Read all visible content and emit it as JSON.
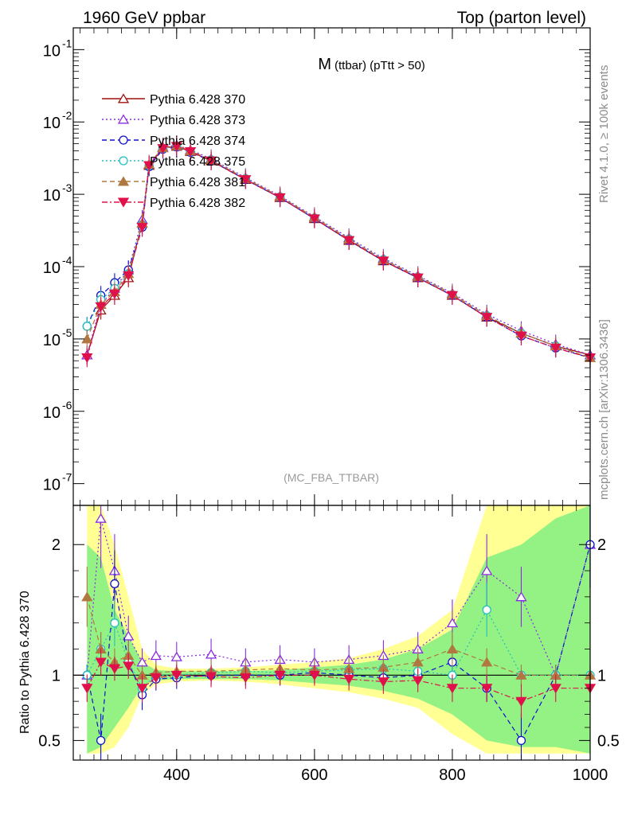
{
  "header": {
    "left": "1960 GeV ppbar",
    "right": "Top (parton level)"
  },
  "plot_title": {
    "main": "M",
    "sub": "(ttbar) (pTtt > 50)"
  },
  "side_labels": {
    "rivet": "Rivet 4.1.0, ≥ 100k events",
    "mcplots": "mcplots.cern.ch [arXiv:1306.3436]"
  },
  "analysis_label": "(MC_FBA_TTBAR)",
  "ratio_ylabel": "Ratio to Pythia 6.428 370",
  "chart_data": [
    {
      "type": "line",
      "title": "M (ttbar) (pTtt > 50)",
      "xlabel": "",
      "ylabel": "",
      "yscale": "log",
      "xlim": [
        250,
        1000
      ],
      "ylim": [
        5e-08,
        0.2
      ],
      "x_ticks": [
        400,
        600,
        800,
        1000
      ],
      "y_ticks": [
        {
          "value": 1e-07,
          "base": "10",
          "exp": "-7"
        },
        {
          "value": 1e-06,
          "base": "10",
          "exp": "-6"
        },
        {
          "value": 1e-05,
          "base": "10",
          "exp": "-5"
        },
        {
          "value": 0.0001,
          "base": "10",
          "exp": "-4"
        },
        {
          "value": 0.001,
          "base": "10",
          "exp": "-3"
        },
        {
          "value": 0.01,
          "base": "10",
          "exp": "-2"
        },
        {
          "value": 0.1,
          "base": "10",
          "exp": "-1"
        }
      ],
      "series": [
        {
          "name": "Pythia 6.428 370",
          "color": "#a01010",
          "marker": "triangle-open",
          "dash": "solid",
          "x": [
            270,
            290,
            310,
            330,
            350,
            360,
            380,
            400,
            420,
            450,
            500,
            550,
            600,
            650,
            700,
            750,
            800,
            850,
            900,
            950,
            1000
          ],
          "values": [
            6e-06,
            2.5e-05,
            4e-05,
            7e-05,
            0.0004,
            0.0025,
            0.0044,
            0.0046,
            0.0039,
            0.0029,
            0.0016,
            0.0009,
            0.00046,
            0.00023,
            0.00012,
            7e-05,
            4e-05,
            2e-05,
            1.2e-05,
            8e-06,
            6e-06
          ]
        },
        {
          "name": "Pythia 6.428 373",
          "color": "#8a2be2",
          "marker": "triangle-open",
          "dash": "dot",
          "x": [
            270,
            290,
            310,
            330,
            350,
            360,
            380,
            400,
            420,
            450,
            500,
            550,
            600,
            650,
            700,
            750,
            800,
            850,
            900,
            950,
            1000
          ],
          "values": [
            6e-06,
            3e-05,
            5e-05,
            9e-05,
            0.00045,
            0.0026,
            0.0045,
            0.0048,
            0.0041,
            0.0031,
            0.0017,
            0.00095,
            0.00049,
            0.00025,
            0.00013,
            7.5e-05,
            4.3e-05,
            2.2e-05,
            1.3e-05,
            8.5e-06,
            6e-06
          ]
        },
        {
          "name": "Pythia 6.428 374",
          "color": "#1010d0",
          "marker": "circle-open",
          "dash": "dash",
          "x": [
            270,
            290,
            310,
            330,
            350,
            360,
            380,
            400,
            420,
            450,
            500,
            550,
            600,
            650,
            700,
            750,
            800,
            850,
            900,
            950,
            1000
          ],
          "values": [
            1.5e-05,
            4e-05,
            6e-05,
            9e-05,
            0.00035,
            0.0024,
            0.0042,
            0.0045,
            0.0038,
            0.0029,
            0.0016,
            0.0009,
            0.00046,
            0.00023,
            0.00012,
            7e-05,
            4e-05,
            2e-05,
            1.1e-05,
            7.5e-06,
            5.5e-06
          ]
        },
        {
          "name": "Pythia 6.428 375",
          "color": "#20c0c0",
          "marker": "circle-open",
          "dash": "dot",
          "x": [
            270,
            290,
            310,
            330,
            350,
            360,
            380,
            400,
            420,
            450,
            500,
            550,
            600,
            650,
            700,
            750,
            800,
            850,
            900,
            950,
            1000
          ],
          "values": [
            1.5e-05,
            3.5e-05,
            5e-05,
            8e-05,
            0.00038,
            0.0025,
            0.0043,
            0.0046,
            0.0039,
            0.003,
            0.00165,
            0.00092,
            0.00047,
            0.00024,
            0.000125,
            7.2e-05,
            4.1e-05,
            2.1e-05,
            1.2e-05,
            8e-06,
            5.5e-06
          ]
        },
        {
          "name": "Pythia 6.428 381",
          "color": "#b07840",
          "marker": "triangle-filled",
          "dash": "dash",
          "x": [
            270,
            290,
            310,
            330,
            350,
            360,
            380,
            400,
            420,
            450,
            500,
            550,
            600,
            650,
            700,
            750,
            800,
            850,
            900,
            950,
            1000
          ],
          "values": [
            1e-05,
            3e-05,
            4.5e-05,
            8e-05,
            0.0004,
            0.0026,
            0.0044,
            0.0047,
            0.004,
            0.003,
            0.00165,
            0.00093,
            0.00048,
            0.00024,
            0.000125,
            7.3e-05,
            4.2e-05,
            2.1e-05,
            1.2e-05,
            8e-06,
            5.5e-06
          ]
        },
        {
          "name": "Pythia 6.428 382",
          "color": "#e0104a",
          "marker": "triangle-down-filled",
          "dash": "dashdot",
          "x": [
            270,
            290,
            310,
            330,
            350,
            360,
            380,
            400,
            420,
            450,
            500,
            550,
            600,
            650,
            700,
            750,
            800,
            850,
            900,
            950,
            1000
          ],
          "values": [
            5.5e-06,
            2.8e-05,
            4.2e-05,
            7.5e-05,
            0.00035,
            0.0025,
            0.0043,
            0.0046,
            0.0039,
            0.0029,
            0.0016,
            0.0009,
            0.00046,
            0.00023,
            0.00012,
            7e-05,
            4e-05,
            2e-05,
            1.1e-05,
            7.5e-06,
            5.5e-06
          ]
        }
      ]
    },
    {
      "type": "line",
      "title": "",
      "xlabel": "",
      "ylabel": "Ratio to Pythia 6.428 370",
      "xlim": [
        250,
        1000
      ],
      "ylim": [
        0.35,
        2.3
      ],
      "x_ticks": [
        400,
        600,
        800,
        1000
      ],
      "y_ticks": [
        0.5,
        1,
        2
      ],
      "bands": {
        "x": [
          270,
          290,
          310,
          330,
          350,
          370,
          400,
          450,
          500,
          550,
          600,
          650,
          700,
          750,
          800,
          850,
          900,
          950,
          1000
        ],
        "yellow_low": [
          0.4,
          0.4,
          0.45,
          0.6,
          0.85,
          0.93,
          0.95,
          0.96,
          0.95,
          0.93,
          0.9,
          0.87,
          0.82,
          0.75,
          0.55,
          0.4,
          0.4,
          0.4,
          0.4
        ],
        "yellow_high": [
          2.3,
          2.3,
          2.0,
          1.6,
          1.2,
          1.08,
          1.05,
          1.05,
          1.06,
          1.08,
          1.1,
          1.13,
          1.2,
          1.3,
          1.5,
          2.3,
          2.3,
          2.3,
          2.3
        ],
        "green_low": [
          0.4,
          0.45,
          0.6,
          0.75,
          0.92,
          0.96,
          0.97,
          0.97,
          0.97,
          0.96,
          0.94,
          0.92,
          0.88,
          0.82,
          0.7,
          0.5,
          0.45,
          0.45,
          0.4
        ],
        "green_high": [
          2.0,
          1.9,
          1.5,
          1.3,
          1.1,
          1.04,
          1.03,
          1.03,
          1.03,
          1.04,
          1.06,
          1.08,
          1.12,
          1.2,
          1.35,
          1.9,
          2.0,
          2.2,
          2.3
        ]
      },
      "series": [
        {
          "name": "Pythia 6.428 370",
          "color": "#a01010",
          "x": [
            270,
            1000
          ],
          "values": [
            1,
            1
          ]
        },
        {
          "name": "Pythia 6.428 373",
          "color": "#8a2be2",
          "x": [
            270,
            290,
            310,
            330,
            350,
            370,
            400,
            450,
            500,
            550,
            600,
            650,
            700,
            750,
            800,
            850,
            900,
            950,
            1000
          ],
          "values": [
            1.0,
            2.2,
            1.8,
            1.3,
            1.1,
            1.15,
            1.14,
            1.16,
            1.1,
            1.12,
            1.1,
            1.12,
            1.15,
            1.2,
            1.4,
            1.8,
            1.6,
            1.0,
            2.0
          ]
        },
        {
          "name": "Pythia 6.428 374",
          "color": "#1010d0",
          "x": [
            270,
            290,
            310,
            330,
            350,
            370,
            400,
            450,
            500,
            550,
            600,
            650,
            700,
            750,
            800,
            850,
            900,
            950,
            1000
          ],
          "values": [
            1.0,
            0.5,
            1.7,
            1.1,
            0.85,
            0.97,
            0.98,
            1.0,
            1.0,
            1.0,
            1.02,
            1.0,
            0.98,
            1.0,
            1.1,
            0.9,
            0.5,
            1.0,
            2.0
          ]
        },
        {
          "name": "Pythia 6.428 375",
          "color": "#20c0c0",
          "x": [
            270,
            290,
            310,
            330,
            350,
            370,
            400,
            450,
            500,
            550,
            600,
            650,
            700,
            750,
            800,
            850,
            900,
            950,
            1000
          ],
          "values": [
            1.0,
            1.2,
            1.4,
            1.1,
            0.9,
            1.0,
            1.0,
            1.02,
            1.03,
            1.02,
            1.03,
            1.04,
            1.05,
            1.03,
            1.0,
            1.5,
            1.0,
            1.0,
            1.0
          ]
        },
        {
          "name": "Pythia 6.428 381",
          "color": "#b07840",
          "x": [
            270,
            290,
            310,
            330,
            350,
            370,
            400,
            450,
            500,
            550,
            600,
            650,
            700,
            750,
            800,
            850,
            900,
            950,
            1000
          ],
          "values": [
            1.6,
            1.2,
            1.1,
            1.15,
            1.0,
            1.02,
            1.03,
            1.03,
            1.04,
            1.05,
            1.04,
            1.05,
            1.06,
            1.1,
            1.2,
            1.1,
            1.0,
            1.0,
            1.0
          ]
        },
        {
          "name": "Pythia 6.428 382",
          "color": "#e0104a",
          "x": [
            270,
            290,
            310,
            330,
            350,
            370,
            400,
            450,
            500,
            550,
            600,
            650,
            700,
            750,
            800,
            850,
            900,
            950,
            1000
          ],
          "values": [
            0.9,
            1.1,
            1.05,
            1.07,
            0.9,
            0.98,
            1.0,
            0.99,
            0.98,
            1.0,
            1.0,
            0.97,
            0.95,
            0.96,
            0.9,
            0.9,
            0.8,
            0.9,
            0.9
          ]
        }
      ]
    }
  ]
}
